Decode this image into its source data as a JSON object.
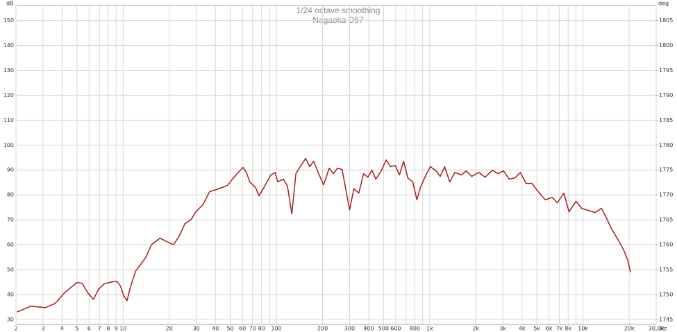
{
  "chart_data": {
    "type": "line",
    "title": "1/24 octave smoothing",
    "subtitle": "Nagaoka D57",
    "y_unit": "dB",
    "y2_unit": "deg",
    "x_unit": "Hz",
    "log_x": true,
    "grid": true,
    "xlim": [
      2,
      30000
    ],
    "ylim": [
      28,
      156
    ],
    "y2lim": [
      1744,
      1808
    ],
    "yticks": [
      30,
      40,
      50,
      60,
      70,
      80,
      90,
      100,
      110,
      120,
      130,
      140,
      150
    ],
    "y2ticks": [
      1745,
      1750,
      1755,
      1760,
      1765,
      1770,
      1775,
      1780,
      1785,
      1790,
      1795,
      1800,
      1805
    ],
    "xticks": [
      2,
      3,
      4,
      5,
      6,
      7,
      8,
      9,
      10,
      20,
      30,
      40,
      50,
      60,
      70,
      80,
      100,
      200,
      300,
      400,
      500,
      600,
      800,
      {
        "value": 1000,
        "label": "1k"
      },
      {
        "value": 2000,
        "label": "2k"
      },
      {
        "value": 3000,
        "label": "3k"
      },
      {
        "value": 4000,
        "label": "4k"
      },
      {
        "value": 5000,
        "label": "5k"
      },
      {
        "value": 6000,
        "label": "6k"
      },
      {
        "value": 7000,
        "label": "7k"
      },
      {
        "value": 8000,
        "label": "8k"
      },
      {
        "value": 10000,
        "label": "10k"
      },
      {
        "value": 20000,
        "label": "20k"
      },
      {
        "value": 30000,
        "label": "30,0k"
      }
    ],
    "xgrid_minor": [
      90,
      700,
      900,
      9000
    ],
    "x": [
      2.03,
      2.5,
      3.1,
      3.6,
      4.2,
      5.0,
      5.4,
      5.9,
      6.4,
      6.9,
      7.5,
      8.4,
      9.1,
      9.6,
      10.1,
      10.6,
      11.2,
      12.1,
      13.1,
      14.1,
      15.3,
      17.4,
      19.3,
      21.3,
      23.2,
      25.3,
      27.7,
      29.8,
      33.1,
      36.7,
      42,
      48,
      52,
      57.5,
      60.6,
      63.7,
      67,
      73,
      77,
      83,
      92,
      98,
      102,
      111,
      118,
      126,
      134,
      143,
      155,
      165,
      175,
      187,
      203,
      221,
      235,
      250,
      268,
      282,
      300,
      320,
      345,
      370,
      395,
      420,
      445,
      482,
      520,
      555,
      595,
      635,
      675,
      720,
      775,
      825,
      870,
      930,
      1010,
      1100,
      1170,
      1250,
      1350,
      1460,
      1610,
      1730,
      1880,
      2090,
      2300,
      2560,
      2790,
      3030,
      3300,
      3600,
      3900,
      4250,
      4640,
      5100,
      5670,
      6300,
      6800,
      7500,
      8100,
      9000,
      9800,
      10900,
      12000,
      13200,
      14300,
      15200,
      16900,
      18400,
      19600,
      20400
    ],
    "series": [
      {
        "color": "#a51c1c",
        "values": [
          33,
          35.3,
          34.7,
          36.4,
          41,
          44.8,
          44.5,
          40.6,
          38,
          42,
          44.2,
          45,
          45.3,
          43.4,
          39.5,
          37.5,
          43.4,
          49.5,
          52.3,
          55,
          60,
          62.6,
          61.2,
          60,
          63.4,
          68.4,
          70,
          73.2,
          76,
          81.3,
          82.4,
          83.8,
          86.5,
          89.6,
          91,
          89,
          85.2,
          83,
          79.6,
          83,
          88,
          89,
          85.2,
          86.3,
          83.5,
          72.3,
          88.5,
          91.3,
          94.6,
          91.3,
          93.5,
          89,
          84,
          90.7,
          88.5,
          90.7,
          90.2,
          83,
          74,
          82.4,
          80.7,
          88.5,
          87.1,
          89.9,
          86.3,
          89.6,
          94,
          91.3,
          91.8,
          88,
          93.5,
          86.8,
          85.2,
          78,
          83,
          87.1,
          91.3,
          89.6,
          87.4,
          91.3,
          85.2,
          89,
          88,
          89.6,
          87.4,
          89,
          87.1,
          89.9,
          88.5,
          89.6,
          86.3,
          86.8,
          89,
          84.6,
          84.6,
          81.3,
          78,
          79,
          76.8,
          80.7,
          73.2,
          77.4,
          74.6,
          73.7,
          72.9,
          74.6,
          70.4,
          66.8,
          62,
          57.9,
          53.7,
          48.9
        ]
      }
    ]
  }
}
